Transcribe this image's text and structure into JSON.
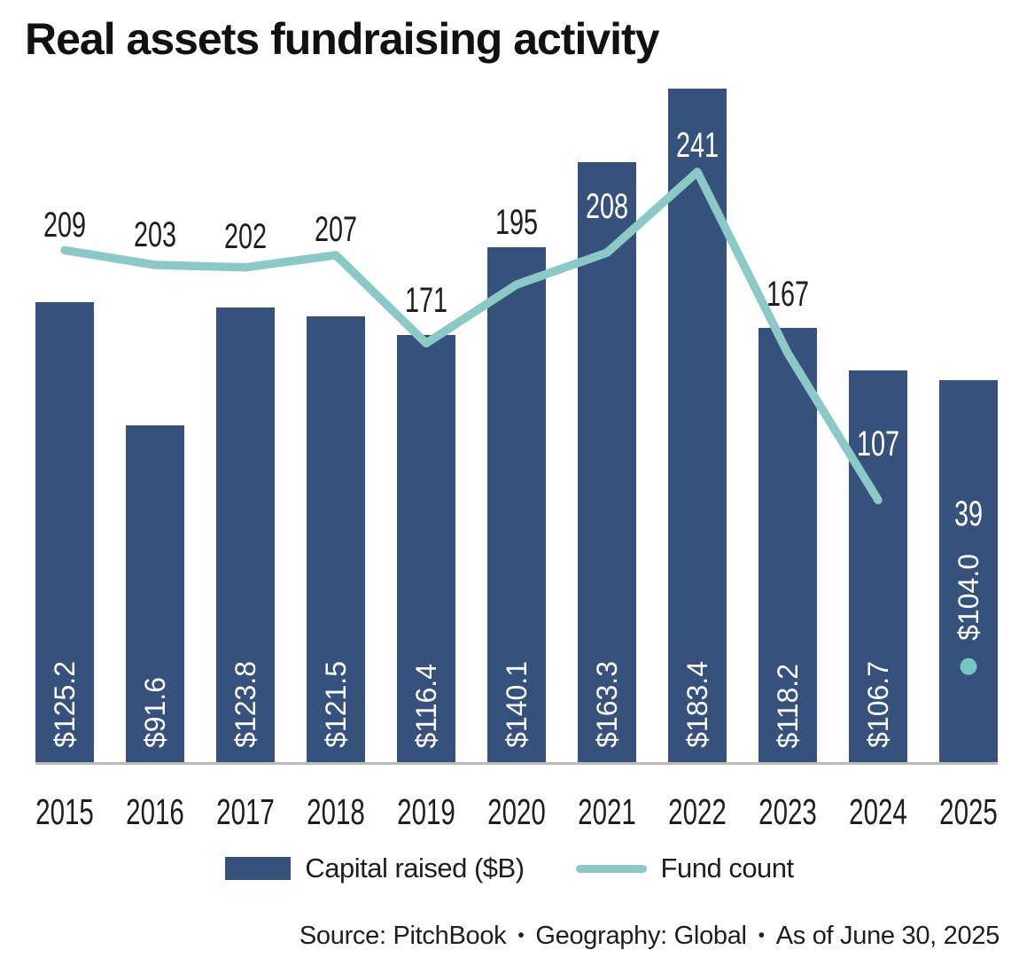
{
  "title": "Real assets fundraising activity",
  "chart_data": {
    "type": "bar+line combo",
    "categories": [
      "2015",
      "2016",
      "2017",
      "2018",
      "2019",
      "2020",
      "2021",
      "2022",
      "2023",
      "2024",
      "2025"
    ],
    "series": [
      {
        "name": "Capital raised ($B)",
        "type": "bar",
        "values": [
          125.2,
          91.6,
          123.8,
          121.5,
          116.4,
          140.1,
          163.3,
          183.4,
          118.2,
          106.7,
          104.0
        ],
        "value_labels": [
          "$125.2",
          "$91.6",
          "$123.8",
          "$121.5",
          "$116.4",
          "$140.1",
          "$163.3",
          "$183.4",
          "$118.2",
          "$106.7",
          "$104.0"
        ]
      },
      {
        "name": "Fund count",
        "type": "line",
        "values": [
          209,
          203,
          202,
          207,
          171,
          195,
          208,
          241,
          167,
          107,
          39
        ],
        "value_labels": [
          "209",
          "203",
          "202",
          "207",
          "171",
          "195",
          "208",
          "241",
          "167",
          "107",
          "39"
        ],
        "last_point_style": "detached-dot"
      }
    ],
    "bar_axis": {
      "min": 0,
      "max_for_scale": 183.4,
      "visible": false
    },
    "line_axis": {
      "min": 0,
      "max_for_scale": 275,
      "visible": false
    },
    "grid": false,
    "legend_position": "bottom-center"
  },
  "legend": {
    "items": [
      {
        "label": "Capital raised ($B)",
        "swatch": "bar"
      },
      {
        "label": "Fund count",
        "swatch": "line"
      }
    ]
  },
  "footer": {
    "items": [
      "Source: PitchBook",
      "Geography: Global",
      "As of June 30, 2025"
    ],
    "separator": "•"
  },
  "colors": {
    "bar": "#35517C",
    "line": "#8BC9C6",
    "dot": "#74C6C1",
    "axis_line": "#BDBAB3",
    "text_dark": "#1E1E1E",
    "text_light": "#FFFFFF",
    "title": "#111111",
    "background": "#FFFFFF"
  }
}
